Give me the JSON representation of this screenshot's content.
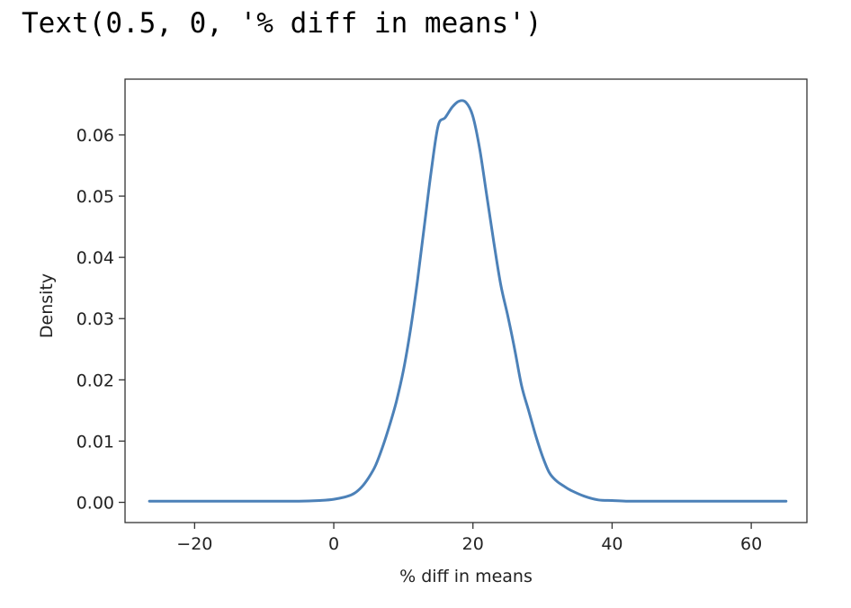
{
  "output": {
    "text": "Text(0.5, 0, '% diff in means')"
  },
  "chart_data": {
    "type": "line",
    "title": "",
    "xlabel": "% diff in means",
    "ylabel": "Density",
    "xlim": [
      -30,
      68
    ],
    "ylim": [
      -0.0033,
      0.0691
    ],
    "xticks": [
      -20,
      0,
      20,
      40,
      60
    ],
    "xtick_labels": [
      "−20",
      "0",
      "20",
      "40",
      "60"
    ],
    "yticks": [
      0.0,
      0.01,
      0.02,
      0.03,
      0.04,
      0.05,
      0.06
    ],
    "ytick_labels": [
      "0.00",
      "0.01",
      "0.02",
      "0.03",
      "0.04",
      "0.05",
      "0.06"
    ],
    "grid": false,
    "series_color": "#4c81b8",
    "series": [
      {
        "x": [
          -26.5,
          -20,
          -10,
          -5,
          -2,
          0,
          2,
          3,
          4,
          5,
          6,
          7,
          8,
          9,
          10,
          11,
          12,
          13,
          14,
          15,
          16,
          17,
          18,
          19,
          20,
          21,
          22,
          23,
          24,
          25,
          26,
          27,
          28,
          29,
          30,
          31,
          32,
          33,
          34,
          36,
          38,
          40,
          42,
          45,
          50,
          55,
          60,
          65
        ],
        "y": [
          0.0002,
          0.0002,
          0.0002,
          0.0002,
          0.0003,
          0.0005,
          0.001,
          0.0015,
          0.0025,
          0.004,
          0.006,
          0.009,
          0.0125,
          0.0165,
          0.0215,
          0.028,
          0.036,
          0.045,
          0.054,
          0.0615,
          0.0628,
          0.0645,
          0.0655,
          0.0653,
          0.063,
          0.0575,
          0.05,
          0.0425,
          0.0355,
          0.0305,
          0.025,
          0.019,
          0.015,
          0.011,
          0.0075,
          0.0048,
          0.0035,
          0.0027,
          0.002,
          0.001,
          0.0004,
          0.0003,
          0.0002,
          0.0002,
          0.0002,
          0.0002,
          0.0002,
          0.0002
        ]
      }
    ]
  }
}
